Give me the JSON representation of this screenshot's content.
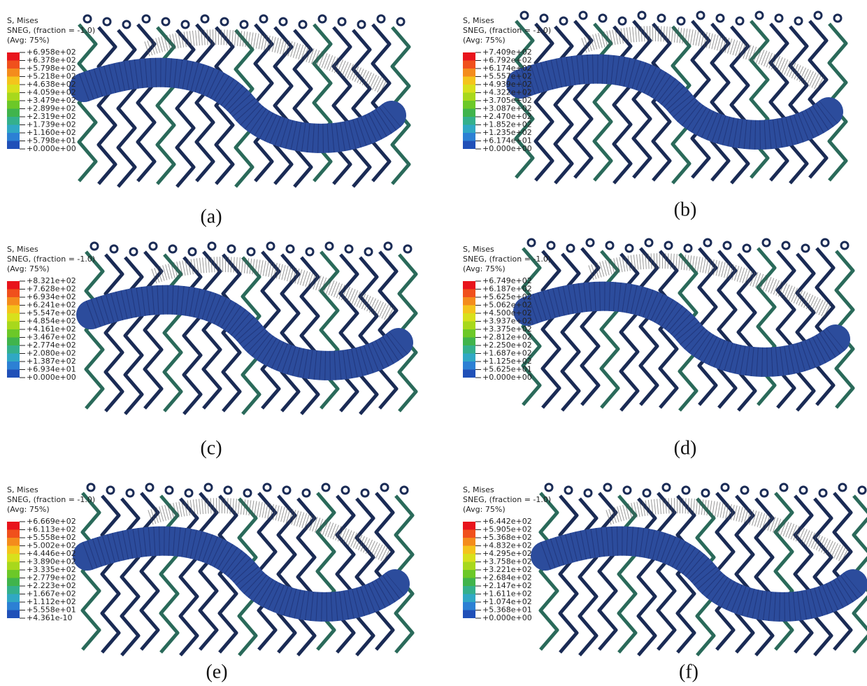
{
  "panels": [
    {
      "legend": {
        "title": "S, Mises",
        "subtitle": "SNEG, (fraction = -1.0)",
        "average": "(Avg: 75%)",
        "values": [
          "+6.958e+02",
          "+6.378e+02",
          "+5.798e+02",
          "+5.218e+02",
          "+4.638e+02",
          "+4.059e+02",
          "+3.479e+02",
          "+2.899e+02",
          "+2.319e+02",
          "+1.739e+02",
          "+1.160e+02",
          "+5.798e+01",
          "+0.000e+00"
        ]
      },
      "caption": "(a)"
    },
    {
      "legend": {
        "title": "S, Mises",
        "subtitle": "SNEG, (fraction = -1.0)",
        "average": "(Avg: 75%)",
        "values": [
          "+7.409e+02",
          "+6.792e+02",
          "+6.174e+02",
          "+5.557e+02",
          "+4.939e+02",
          "+4.322e+02",
          "+3.705e+02",
          "+3.087e+02",
          "+2.470e+02",
          "+1.852e+02",
          "+1.235e+02",
          "+6.174e+01",
          "+0.000e+00"
        ]
      },
      "caption": "(b)"
    },
    {
      "legend": {
        "title": "S, Mises",
        "subtitle": "SNEG, (fraction = -1.0)",
        "average": "(Avg: 75%)",
        "values": [
          "+8.321e+02",
          "+7.628e+02",
          "+6.934e+02",
          "+6.241e+02",
          "+5.547e+02",
          "+4.854e+02",
          "+4.161e+02",
          "+3.467e+02",
          "+2.774e+02",
          "+2.080e+02",
          "+1.387e+02",
          "+6.934e+01",
          "+0.000e+00"
        ]
      },
      "caption": "(c)"
    },
    {
      "legend": {
        "title": "S, Mises",
        "subtitle": "SNEG, (fraction = -1.0)",
        "average": "(Avg: 75%)",
        "values": [
          "+6.749e+02",
          "+6.187e+02",
          "+5.625e+02",
          "+5.062e+02",
          "+4.500e+02",
          "+3.937e+02",
          "+3.375e+02",
          "+2.812e+02",
          "+2.250e+02",
          "+1.687e+02",
          "+1.125e+02",
          "+5.625e+01",
          "+0.000e+00"
        ]
      },
      "caption": "(d)"
    },
    {
      "legend": {
        "title": "S, Mises",
        "subtitle": "SNEG, (fraction = -1.0)",
        "average": "(Avg: 75%)",
        "values": [
          "+6.669e+02",
          "+6.113e+02",
          "+5.558e+02",
          "+5.002e+02",
          "+4.446e+02",
          "+3.890e+02",
          "+3.335e+02",
          "+2.779e+02",
          "+2.223e+02",
          "+1.667e+02",
          "+1.112e+02",
          "+5.558e+01",
          "+4.361e-10"
        ]
      },
      "caption": "(e)"
    },
    {
      "legend": {
        "title": "S, Mises",
        "subtitle": "SNEG, (fraction = -1.0)",
        "average": "(Avg: 75%)",
        "values": [
          "+6.442e+02",
          "+5.905e+02",
          "+5.368e+02",
          "+4.832e+02",
          "+4.295e+02",
          "+3.758e+02",
          "+3.221e+02",
          "+2.684e+02",
          "+2.147e+02",
          "+1.611e+02",
          "+1.074e+02",
          "+5.368e+01",
          "+0.000e+00"
        ]
      },
      "caption": "(f)"
    }
  ]
}
